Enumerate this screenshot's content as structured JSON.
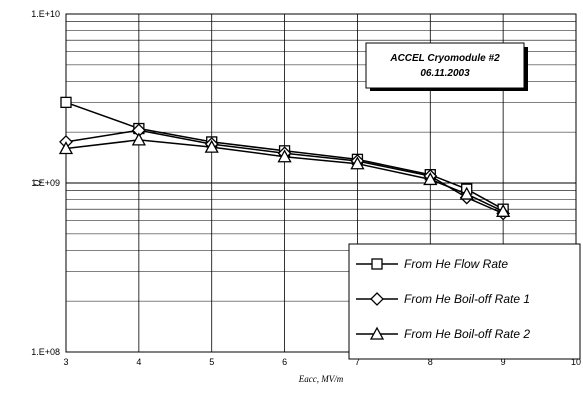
{
  "chart_data": {
    "type": "line",
    "yscale": "log",
    "xlabel": "Eacc, MV/m",
    "ylabel": "Q",
    "xlim": [
      3,
      10
    ],
    "ylim": [
      100000000.0,
      10000000000.0
    ],
    "x_ticks": [
      "3",
      "4",
      "5",
      "6",
      "7",
      "8",
      "9",
      "10"
    ],
    "y_ticks": [
      "1.E+08",
      "1.E+09",
      "1.E+10"
    ],
    "grid": true,
    "annotation": [
      "ACCEL Cryomodule #2",
      "06.11.2003"
    ],
    "legend_position": "bottom-right",
    "series": [
      {
        "name": "From He Flow Rate",
        "marker": "square",
        "x": [
          3,
          4,
          5,
          6,
          7,
          8,
          8.5,
          9
        ],
        "y": [
          3000000000.0,
          2100000000.0,
          1750000000.0,
          1550000000.0,
          1380000000.0,
          1120000000.0,
          920000000.0,
          700000000.0
        ]
      },
      {
        "name": "From He Boil-off Rate 1",
        "marker": "diamond",
        "x": [
          3,
          4,
          5,
          6,
          7,
          8,
          8.5,
          9
        ],
        "y": [
          1750000000.0,
          2050000000.0,
          1700000000.0,
          1500000000.0,
          1350000000.0,
          1100000000.0,
          820000000.0,
          660000000.0
        ]
      },
      {
        "name": "From He Boil-off Rate 2",
        "marker": "triangle",
        "x": [
          3,
          4,
          5,
          6,
          7,
          8,
          8.5,
          9
        ],
        "y": [
          1600000000.0,
          1800000000.0,
          1630000000.0,
          1430000000.0,
          1300000000.0,
          1050000000.0,
          860000000.0,
          680000000.0
        ]
      }
    ]
  }
}
